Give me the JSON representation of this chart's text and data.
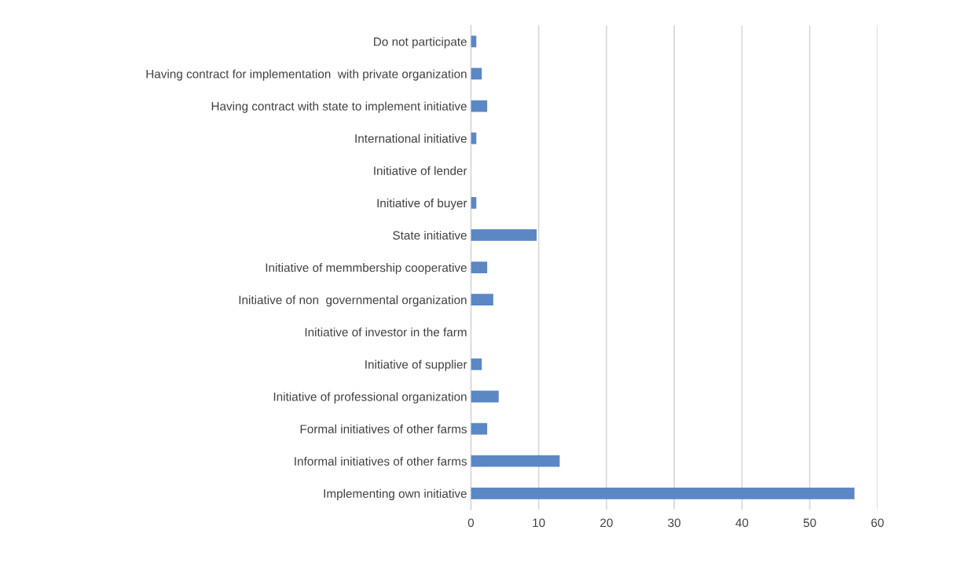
{
  "chart_data": {
    "type": "bar",
    "orientation": "horizontal",
    "categories": [
      "Do not participate",
      "Having contract for implementation  with private organization",
      "Having contract with state to implement initiative",
      "International initiative",
      "Initiative of lender",
      "Initiative of buyer",
      "State initiative",
      "Initiative of memmbership cooperative",
      "Initiative of non  governmental organization",
      "Initiative of investor in the farm",
      "Initiative of supplier",
      "Initiative of professional organization",
      "Formal initiatives of other farms",
      "Informal initiatives of other farms",
      "Implementing own initiative"
    ],
    "values": [
      0.8,
      1.6,
      2.4,
      0.8,
      0,
      0.8,
      9.7,
      2.4,
      3.3,
      0,
      1.6,
      4.1,
      2.4,
      13.1,
      56.6
    ],
    "color": "#5b87c5",
    "xlim": [
      0,
      60
    ],
    "xticks": [
      0,
      10,
      20,
      30,
      40,
      50,
      60
    ],
    "grid": "x"
  }
}
